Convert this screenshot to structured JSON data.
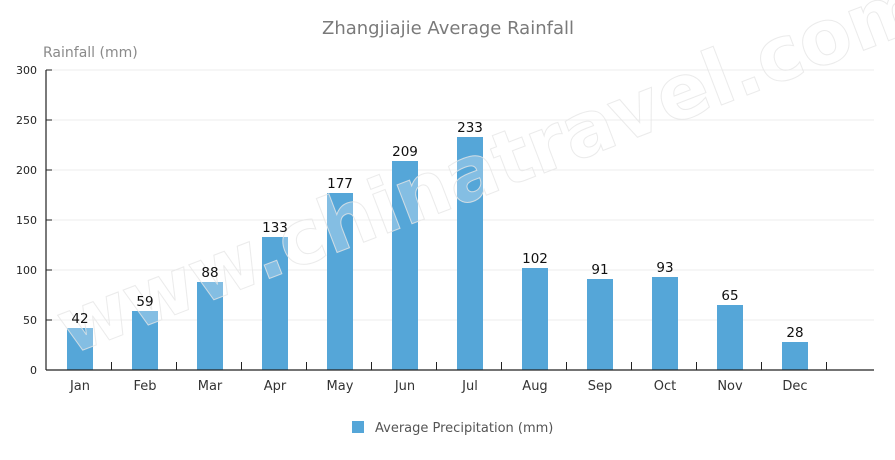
{
  "chart_data": {
    "type": "bar",
    "title": "Zhangjiajie Average Rainfall",
    "xlabel": "",
    "ylabel": "Rainfall (mm)",
    "ylim": [
      0,
      300
    ],
    "yticks": [
      0,
      50,
      100,
      150,
      200,
      250,
      300
    ],
    "grid": true,
    "legend_position": "bottom",
    "categories": [
      "Jan",
      "Feb",
      "Mar",
      "Apr",
      "May",
      "Jun",
      "Jul",
      "Aug",
      "Sep",
      "Oct",
      "Nov",
      "Dec"
    ],
    "series": [
      {
        "name": "Average Precipitation (mm)",
        "color": "#55a6d8",
        "values": [
          42,
          59,
          88,
          133,
          177,
          209,
          233,
          102,
          91,
          93,
          65,
          28
        ]
      }
    ],
    "data_labels": true
  },
  "watermark": "www.chinatravel.com"
}
